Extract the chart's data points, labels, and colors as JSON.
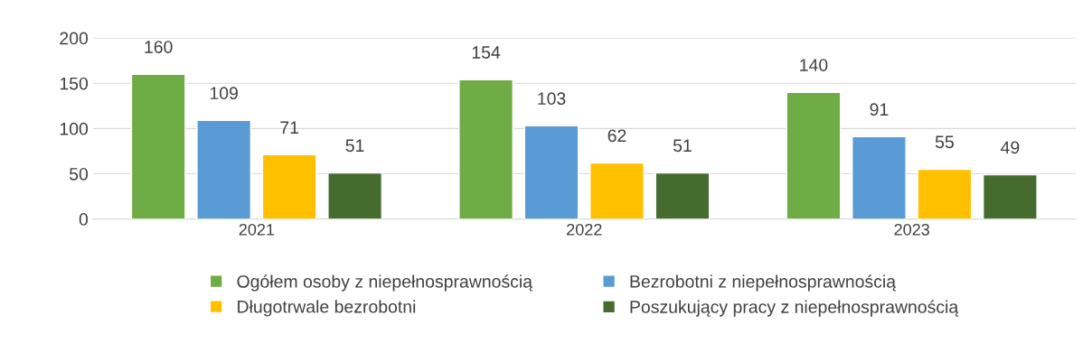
{
  "chart_data": {
    "type": "bar",
    "categories": [
      "2021",
      "2022",
      "2023"
    ],
    "series": [
      {
        "name": "Ogółem osoby z niepełnosprawnością",
        "color": "#6fac46",
        "values": [
          160,
          154,
          140
        ]
      },
      {
        "name": "Bezrobotni z niepełnosprawnością",
        "color": "#5b9bd5",
        "values": [
          109,
          103,
          91
        ]
      },
      {
        "name": "Długotrwale bezrobotni",
        "color": "#ffc000",
        "values": [
          71,
          62,
          55
        ]
      },
      {
        "name": "Poszukujący pracy z niepełnosprawnością",
        "color": "#456b2e",
        "values": [
          51,
          51,
          49
        ]
      }
    ],
    "ylim": [
      0,
      200
    ],
    "yticks": [
      0,
      50,
      100,
      150,
      200
    ],
    "grid": "y",
    "data_labels": true,
    "legend": "bottom"
  }
}
